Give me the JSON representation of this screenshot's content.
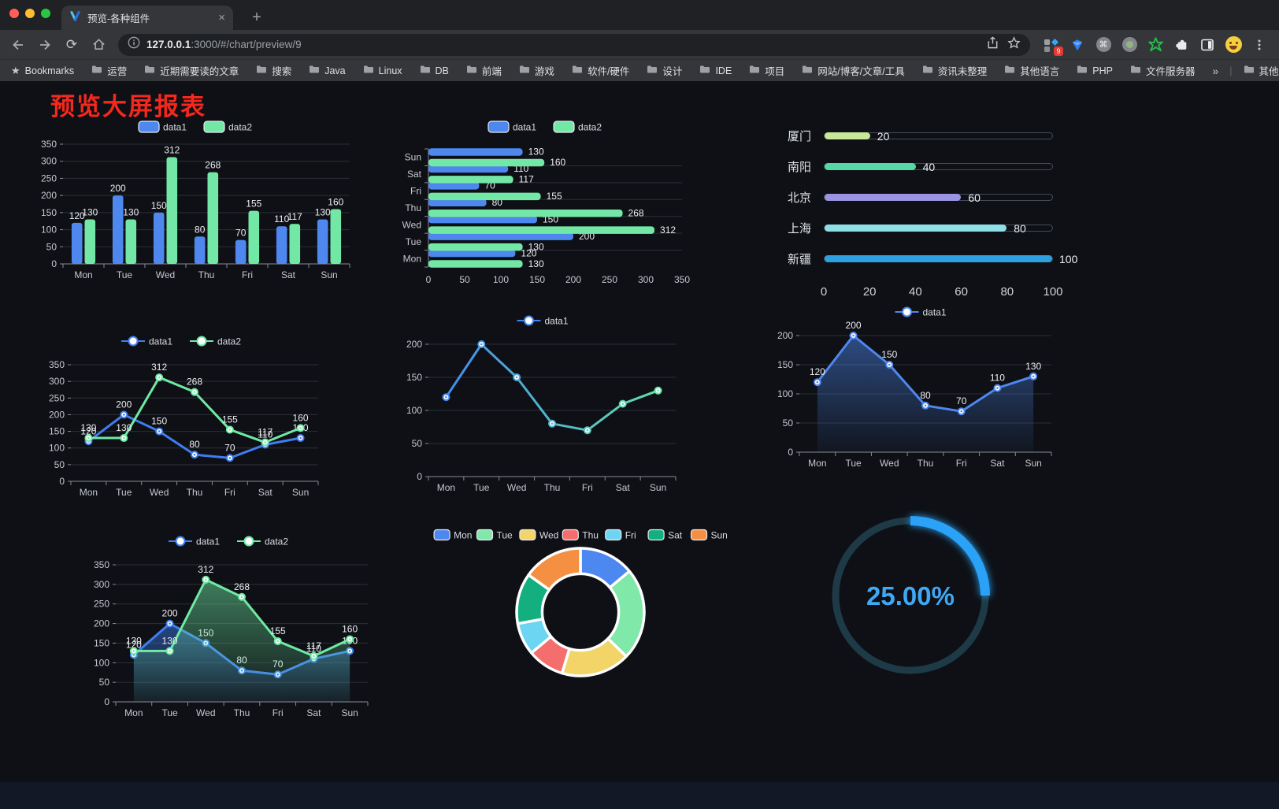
{
  "browser": {
    "traffic_lights": {
      "close": "#ff5f57",
      "minimize": "#febc2e",
      "zoom": "#28c840"
    },
    "tab": {
      "title": "预览-各种组件",
      "close_icon": "×",
      "new_tab_icon": "+"
    },
    "address": {
      "host": "127.0.0.1",
      "rest": ":3000/#/chart/preview/9"
    },
    "extensions_badge": "9",
    "bookmarks_bar": {
      "star_icon": "★",
      "label": "Bookmarks",
      "folders": [
        "运营",
        "近期需要读的文章",
        "搜索",
        "Java",
        "Linux",
        "DB",
        "前端",
        "游戏",
        "软件/硬件",
        "设计",
        "IDE",
        "项目",
        "网站/博客/文章/工具",
        "资讯未整理",
        "其他语言",
        "PHP",
        "文件服务器"
      ],
      "overflow": "»",
      "other": "其他书签"
    }
  },
  "page": {
    "title": "预览大屏报表",
    "title_color": "#f5281d"
  },
  "chart_data": [
    {
      "id": "bar-grouped",
      "type": "bar",
      "categories": [
        "Mon",
        "Tue",
        "Wed",
        "Thu",
        "Fri",
        "Sat",
        "Sun"
      ],
      "series": [
        {
          "name": "data1",
          "color": "#4e87ee",
          "values": [
            120,
            200,
            150,
            80,
            70,
            110,
            130
          ]
        },
        {
          "name": "data2",
          "color": "#73e8a6",
          "values": [
            130,
            130,
            312,
            268,
            155,
            117,
            160
          ]
        }
      ],
      "ylim": [
        0,
        350
      ],
      "ystep": 50,
      "value_labels": true,
      "legend_position": "top",
      "grid": true
    },
    {
      "id": "bar-horizontal",
      "type": "bar-horizontal",
      "categories": [
        "Mon",
        "Tue",
        "Wed",
        "Thu",
        "Fri",
        "Sat",
        "Sun"
      ],
      "series": [
        {
          "name": "data1",
          "color": "#4e87ee",
          "values": [
            120,
            200,
            150,
            80,
            70,
            110,
            130
          ]
        },
        {
          "name": "data2",
          "color": "#73e8a6",
          "values": [
            130,
            130,
            312,
            268,
            155,
            117,
            160
          ]
        }
      ],
      "xlim": [
        0,
        350
      ],
      "xstep": 50,
      "value_labels": true,
      "legend_position": "top",
      "grid": true
    },
    {
      "id": "progress-list",
      "type": "bar-horizontal",
      "items": [
        {
          "label": "厦门",
          "value": 20,
          "color": "#c7e89a"
        },
        {
          "label": "南阳",
          "value": 40,
          "color": "#55d8a5"
        },
        {
          "label": "北京",
          "value": 60,
          "color": "#9a94e2"
        },
        {
          "label": "上海",
          "value": 80,
          "color": "#8fe0e6"
        },
        {
          "label": "新疆",
          "value": 100,
          "color": "#2ea0df"
        }
      ],
      "xlim": [
        0,
        100
      ],
      "xticks": [
        0,
        20,
        40,
        60,
        80,
        100
      ]
    },
    {
      "id": "line-dual",
      "type": "line",
      "categories": [
        "Mon",
        "Tue",
        "Wed",
        "Thu",
        "Fri",
        "Sat",
        "Sun"
      ],
      "series": [
        {
          "name": "data1",
          "color": "#3f7ef0",
          "values": [
            120,
            200,
            150,
            80,
            70,
            110,
            130
          ]
        },
        {
          "name": "data2",
          "color": "#6fe9a3",
          "values": [
            130,
            130,
            312,
            268,
            155,
            117,
            160
          ]
        }
      ],
      "ylim": [
        0,
        350
      ],
      "ystep": 50,
      "value_labels": true,
      "legend_position": "top",
      "grid": true
    },
    {
      "id": "line-gradient",
      "type": "line",
      "categories": [
        "Mon",
        "Tue",
        "Wed",
        "Thu",
        "Fri",
        "Sat",
        "Sun"
      ],
      "series": [
        {
          "name": "data1",
          "color": "#4285f0",
          "gradient": [
            "#4285f0",
            "#63e6a5"
          ],
          "values": [
            120,
            200,
            150,
            80,
            70,
            110,
            130
          ]
        }
      ],
      "ylim": [
        0,
        200
      ],
      "ystep": 50,
      "value_labels": false,
      "legend_position": "top",
      "grid": true
    },
    {
      "id": "line-area",
      "type": "area",
      "categories": [
        "Mon",
        "Tue",
        "Wed",
        "Thu",
        "Fri",
        "Sat",
        "Sun"
      ],
      "series": [
        {
          "name": "data1",
          "color": "#4e87ee",
          "area": true,
          "values": [
            120,
            200,
            150,
            80,
            70,
            110,
            130
          ]
        }
      ],
      "ylim": [
        0,
        200
      ],
      "ystep": 50,
      "value_labels": true,
      "legend_position": "top",
      "grid": true
    },
    {
      "id": "area-dual",
      "type": "area",
      "categories": [
        "Mon",
        "Tue",
        "Wed",
        "Thu",
        "Fri",
        "Sat",
        "Sun"
      ],
      "series": [
        {
          "name": "data1",
          "color": "#3f7ef0",
          "area": true,
          "values": [
            120,
            200,
            150,
            80,
            70,
            110,
            130
          ]
        },
        {
          "name": "data2",
          "color": "#6fe9a3",
          "area": true,
          "values": [
            130,
            130,
            312,
            268,
            155,
            117,
            160
          ]
        }
      ],
      "ylim": [
        0,
        350
      ],
      "ystep": 50,
      "value_labels": true,
      "legend_position": "top",
      "grid": true
    },
    {
      "id": "donut",
      "type": "pie",
      "items": [
        {
          "label": "Mon",
          "value": 120,
          "color": "#4d87f0"
        },
        {
          "label": "Tue",
          "value": 200,
          "color": "#80e8a8"
        },
        {
          "label": "Wed",
          "value": 150,
          "color": "#f2d468"
        },
        {
          "label": "Thu",
          "value": 80,
          "color": "#f56e6e"
        },
        {
          "label": "Fri",
          "value": 70,
          "color": "#6cd5f2"
        },
        {
          "label": "Sat",
          "value": 110,
          "color": "#13af7e"
        },
        {
          "label": "Sun",
          "value": 130,
          "color": "#f58f42"
        }
      ],
      "inner_radius_ratio": 0.6,
      "legend_position": "top"
    },
    {
      "id": "gauge",
      "type": "gauge",
      "percent": 25,
      "label": "25.00%",
      "color": "#2ba2f7",
      "track_color": "#1d3a46"
    }
  ]
}
